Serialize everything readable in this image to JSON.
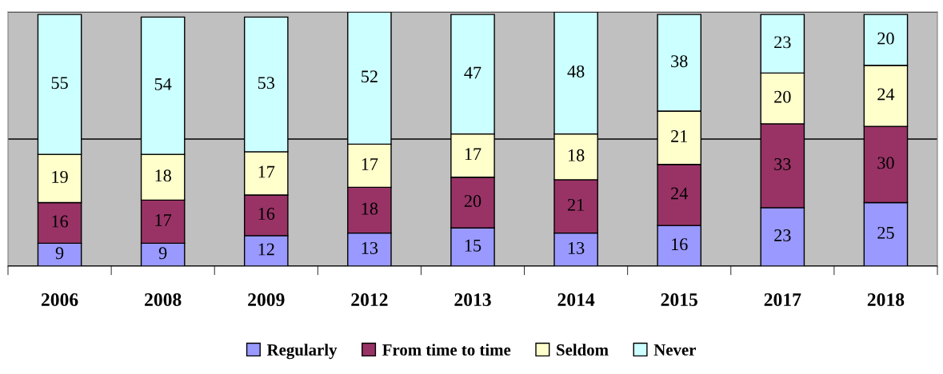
{
  "chart_data": {
    "type": "bar",
    "stacked": true,
    "categories": [
      "2006",
      "2008",
      "2009",
      "2012",
      "2013",
      "2014",
      "2015",
      "2017",
      "2018"
    ],
    "series": [
      {
        "name": "Regularly",
        "color": "#9999ff",
        "values": [
          9,
          9,
          12,
          13,
          15,
          13,
          16,
          23,
          25
        ]
      },
      {
        "name": "From time to time",
        "color": "#993366",
        "values": [
          16,
          17,
          16,
          18,
          20,
          21,
          24,
          33,
          30
        ]
      },
      {
        "name": "Seldom",
        "color": "#ffffcc",
        "values": [
          19,
          18,
          17,
          17,
          17,
          18,
          21,
          20,
          24
        ]
      },
      {
        "name": "Never",
        "color": "#ccffff",
        "values": [
          55,
          54,
          53,
          52,
          47,
          48,
          38,
          23,
          20
        ]
      }
    ],
    "ylim": [
      0,
      100
    ],
    "yticks": [
      {
        "value": 0,
        "label": null
      },
      {
        "value": 50,
        "label": null
      },
      {
        "value": 100,
        "label": null
      }
    ],
    "tick_labels": "x",
    "grid": "y",
    "data_labels": true,
    "legend": "bottom"
  }
}
